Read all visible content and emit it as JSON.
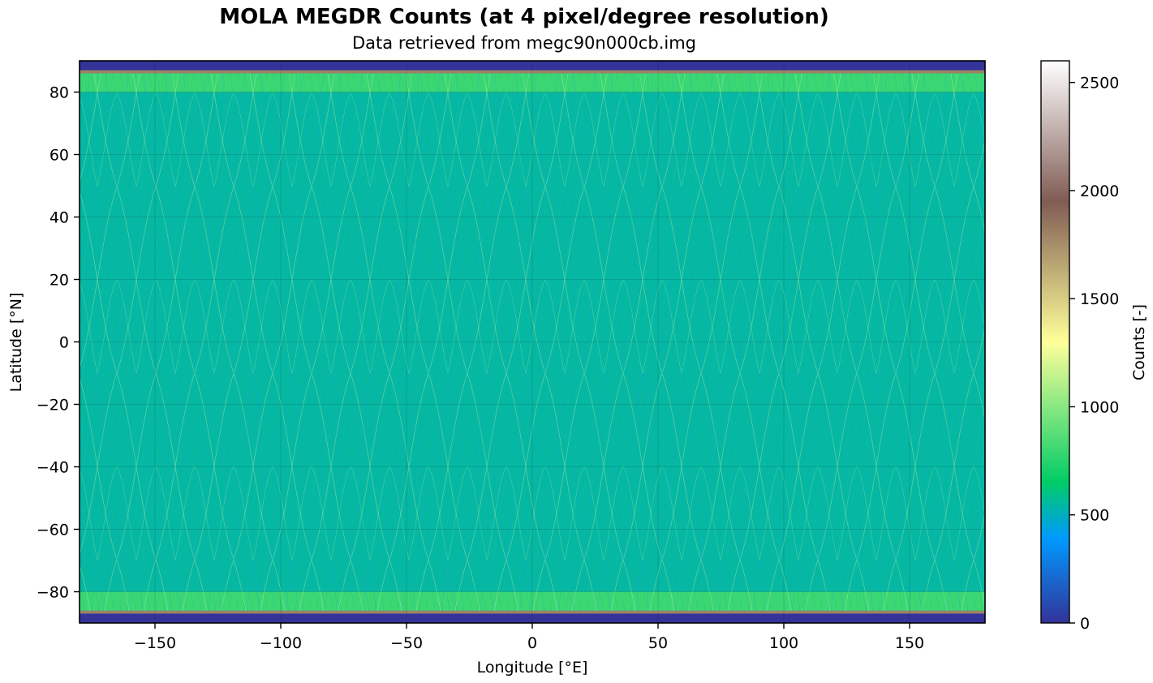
{
  "chart_data": {
    "type": "heatmap",
    "title": "MOLA MEGDR Counts (at 4 pixel/degree resolution)",
    "subtitle": "Data retrieved from megc90n000cb.img",
    "xlabel": "Longitude [°E]",
    "ylabel": "Latitude [°N]",
    "xlim": [
      -180,
      180
    ],
    "ylim": [
      -90,
      90
    ],
    "xticks": [
      -150,
      -100,
      -50,
      0,
      50,
      100,
      150
    ],
    "yticks": [
      -80,
      -60,
      -40,
      -20,
      0,
      20,
      40,
      60,
      80
    ],
    "grid": true,
    "resolution_pixels_per_degree": 4,
    "colorbar": {
      "label": "Counts [-]",
      "colormap": "terrain",
      "range": [
        0,
        2600
      ],
      "ticks": [
        0,
        500,
        1000,
        1500,
        2000,
        2500
      ]
    },
    "latitude_bands": [
      {
        "lat_min": -90,
        "lat_max": -87,
        "approx_counts": 0
      },
      {
        "lat_min": -87,
        "lat_max": -86,
        "approx_counts": 1800
      },
      {
        "lat_min": -86,
        "lat_max": -80,
        "approx_counts": 800
      },
      {
        "lat_min": -80,
        "lat_max": 80,
        "approx_counts": 550
      },
      {
        "lat_min": 80,
        "lat_max": 86,
        "approx_counts": 800
      },
      {
        "lat_min": 86,
        "lat_max": 87,
        "approx_counts": 1800
      },
      {
        "lat_min": 87,
        "lat_max": 90,
        "approx_counts": 0
      }
    ]
  }
}
